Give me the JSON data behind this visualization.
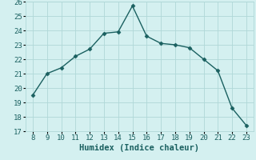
{
  "x": [
    8,
    9,
    10,
    11,
    12,
    13,
    14,
    15,
    16,
    17,
    18,
    19,
    20,
    21,
    22,
    23
  ],
  "y": [
    19.5,
    21.0,
    21.4,
    22.2,
    22.7,
    23.8,
    23.9,
    25.7,
    23.6,
    23.1,
    23.0,
    22.8,
    22.0,
    21.2,
    18.6,
    17.4
  ],
  "xlabel": "Humidex (Indice chaleur)",
  "xlim": [
    7.5,
    23.5
  ],
  "ylim": [
    17,
    26
  ],
  "xticks": [
    8,
    9,
    10,
    11,
    12,
    13,
    14,
    15,
    16,
    17,
    18,
    19,
    20,
    21,
    22,
    23
  ],
  "yticks": [
    17,
    18,
    19,
    20,
    21,
    22,
    23,
    24,
    25,
    26
  ],
  "line_color": "#1a6060",
  "marker": "D",
  "marker_size": 2.5,
  "bg_color": "#d4f0f0",
  "grid_color": "#b0d8d8",
  "tick_fontsize": 6.5,
  "xlabel_fontsize": 7.5
}
